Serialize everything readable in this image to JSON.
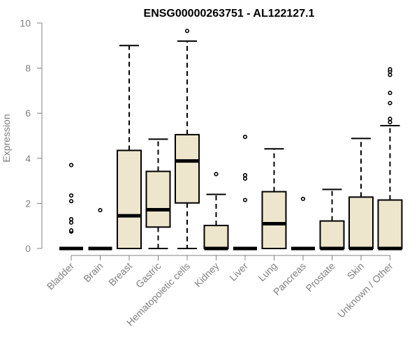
{
  "chart_data": {
    "type": "boxplot",
    "title": "ENSG00000263751 - AL122127.1",
    "xlabel": "",
    "ylabel": "Expression",
    "ylim": [
      0,
      10
    ],
    "yticks": [
      0,
      2,
      4,
      6,
      8,
      10
    ],
    "grid": false,
    "legend": "none",
    "colors": {
      "box_fill": "#EDE6CC",
      "box_stroke": "#000000",
      "axis": "#808080"
    },
    "categories": [
      "Bladder",
      "Brain",
      "Breast",
      "Gastric",
      "Hematopoietic cells",
      "Kidney",
      "Liver",
      "Lung",
      "Pancreas",
      "Prostate",
      "Skin",
      "Unknown / Other"
    ],
    "boxes": [
      {
        "category": "Bladder",
        "whisker_low": 0,
        "q1": 0,
        "median": 0,
        "q3": 0,
        "whisker_high": 0,
        "outliers": [
          0.75,
          0.8,
          1.15,
          1.3,
          2.1,
          2.35,
          3.7
        ]
      },
      {
        "category": "Brain",
        "whisker_low": 0,
        "q1": 0,
        "median": 0,
        "q3": 0,
        "whisker_high": 0,
        "outliers": [
          1.7
        ]
      },
      {
        "category": "Breast",
        "whisker_low": 0,
        "q1": 0,
        "median": 1.45,
        "q3": 4.35,
        "whisker_high": 9.0,
        "outliers": []
      },
      {
        "category": "Gastric",
        "whisker_low": 0,
        "q1": 0.95,
        "median": 1.72,
        "q3": 3.42,
        "whisker_high": 4.85,
        "outliers": []
      },
      {
        "category": "Hematopoietic cells",
        "whisker_low": 0,
        "q1": 2.02,
        "median": 3.88,
        "q3": 5.05,
        "whisker_high": 9.2,
        "outliers": [
          9.65
        ]
      },
      {
        "category": "Kidney",
        "whisker_low": 0,
        "q1": 0,
        "median": 0,
        "q3": 1.02,
        "whisker_high": 2.4,
        "outliers": [
          3.3
        ]
      },
      {
        "category": "Liver",
        "whisker_low": 0,
        "q1": 0,
        "median": 0,
        "q3": 0,
        "whisker_high": 0,
        "outliers": [
          2.15,
          3.1,
          3.25,
          4.95
        ]
      },
      {
        "category": "Lung",
        "whisker_low": 0,
        "q1": 0,
        "median": 1.1,
        "q3": 2.52,
        "whisker_high": 4.42,
        "outliers": []
      },
      {
        "category": "Pancreas",
        "whisker_low": 0,
        "q1": 0,
        "median": 0,
        "q3": 0,
        "whisker_high": 0,
        "outliers": [
          2.2
        ]
      },
      {
        "category": "Prostate",
        "whisker_low": 0,
        "q1": 0,
        "median": 0,
        "q3": 1.22,
        "whisker_high": 2.62,
        "outliers": []
      },
      {
        "category": "Skin",
        "whisker_low": 0,
        "q1": 0,
        "median": 0,
        "q3": 2.28,
        "whisker_high": 4.88,
        "outliers": []
      },
      {
        "category": "Unknown / Other",
        "whisker_low": 0,
        "q1": 0,
        "median": 0,
        "q3": 2.15,
        "whisker_high": 5.45,
        "outliers": [
          5.6,
          5.75,
          6.45,
          6.9,
          7.7,
          7.85,
          7.95
        ]
      }
    ]
  }
}
